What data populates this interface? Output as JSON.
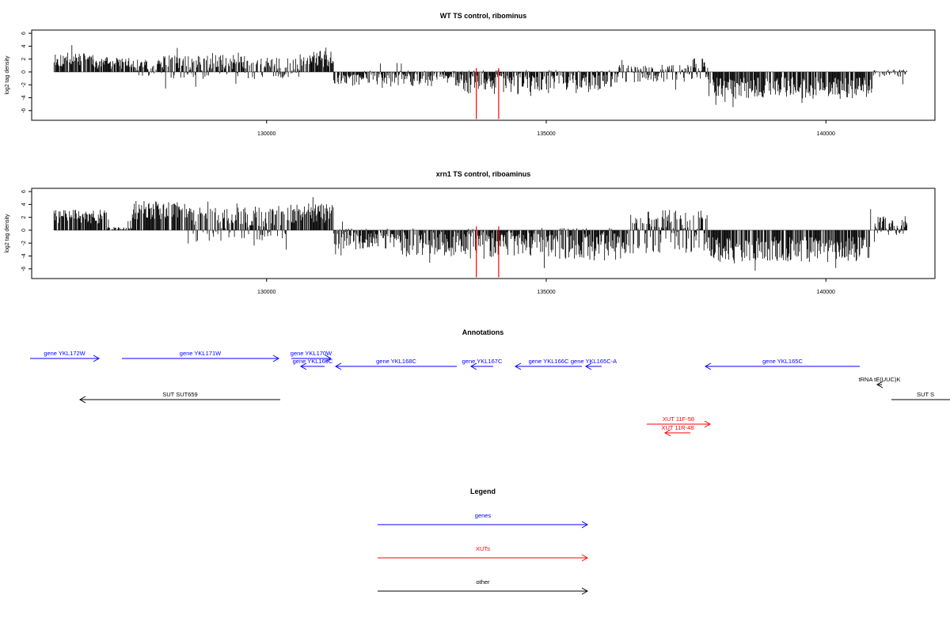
{
  "colors": {
    "gene": "#0000ff",
    "xut": "#ff0000",
    "other": "#000000",
    "marker": "#ff0000"
  },
  "chart_data": [
    {
      "type": "bar",
      "title": "WT TS control, ribominus",
      "ylabel": "log2 tag density",
      "ylim": [
        -7.5,
        6.5
      ],
      "xlim": [
        125800,
        141950
      ],
      "yticks": [
        -6,
        -4,
        -2,
        0,
        2,
        4,
        6
      ],
      "xticks": [
        130000,
        135000,
        140000
      ],
      "grid": false,
      "data_start": 126200,
      "data_end": 141450,
      "markers": [
        133750,
        134150
      ],
      "marker_depth": -7.3,
      "segments": [
        {
          "x0": 126200,
          "x1": 126900,
          "y0": 0.8,
          "y1": 3.0
        },
        {
          "x0": 126900,
          "x1": 127550,
          "y0": 0.4,
          "y1": 2.2
        },
        {
          "x0": 127550,
          "x1": 128150,
          "y0": -0.6,
          "y1": 2.0
        },
        {
          "x0": 128150,
          "x1": 129000,
          "y0": -1.4,
          "y1": 2.6
        },
        {
          "x0": 129000,
          "x1": 129650,
          "y0": -0.9,
          "y1": 3.1
        },
        {
          "x0": 129650,
          "x1": 130600,
          "y0": -1.1,
          "y1": 2.2
        },
        {
          "x0": 130600,
          "x1": 131200,
          "y0": 0.8,
          "y1": 3.4
        },
        {
          "x0": 131200,
          "x1": 132200,
          "y0": -2.0,
          "y1": 0.2
        },
        {
          "x0": 132200,
          "x1": 133500,
          "y0": -2.2,
          "y1": 0.2
        },
        {
          "x0": 133500,
          "x1": 134700,
          "y0": -3.5,
          "y1": 0.3
        },
        {
          "x0": 134700,
          "x1": 136300,
          "y0": -3.2,
          "y1": 0.3
        },
        {
          "x0": 136300,
          "x1": 137600,
          "y0": -1.6,
          "y1": 1.1
        },
        {
          "x0": 137600,
          "x1": 137900,
          "y0": -1.2,
          "y1": 2.2
        },
        {
          "x0": 137900,
          "x1": 140850,
          "y0": -4.2,
          "y1": -0.8
        },
        {
          "x0": 140850,
          "x1": 141450,
          "y0": -0.8,
          "y1": 0.4
        }
      ]
    },
    {
      "type": "bar",
      "title": "xrn1 TS control, riboaminus",
      "ylabel": "log2 tag density",
      "ylim": [
        -7.5,
        6.5
      ],
      "xlim": [
        125800,
        141950
      ],
      "yticks": [
        -6,
        -4,
        -2,
        0,
        2,
        4,
        6
      ],
      "xticks": [
        130000,
        135000,
        140000
      ],
      "grid": false,
      "data_start": 126200,
      "data_end": 141450,
      "markers": [
        133750,
        134150
      ],
      "marker_depth": -7.3,
      "segments": [
        {
          "x0": 126200,
          "x1": 127150,
          "y0": 1.0,
          "y1": 3.2
        },
        {
          "x0": 127150,
          "x1": 127600,
          "y0": 0.0,
          "y1": 0.5
        },
        {
          "x0": 127600,
          "x1": 128600,
          "y0": 1.6,
          "y1": 4.6
        },
        {
          "x0": 128600,
          "x1": 130400,
          "y0": -1.8,
          "y1": 3.8
        },
        {
          "x0": 130400,
          "x1": 131200,
          "y0": 1.0,
          "y1": 4.2
        },
        {
          "x0": 131200,
          "x1": 132400,
          "y0": -3.0,
          "y1": 0.3
        },
        {
          "x0": 132400,
          "x1": 133600,
          "y0": -4.2,
          "y1": 0.3
        },
        {
          "x0": 133600,
          "x1": 134800,
          "y0": -4.6,
          "y1": 0.4
        },
        {
          "x0": 134800,
          "x1": 136500,
          "y0": -4.8,
          "y1": 0.4
        },
        {
          "x0": 136500,
          "x1": 137900,
          "y0": -3.6,
          "y1": 3.2
        },
        {
          "x0": 137900,
          "x1": 140800,
          "y0": -5.0,
          "y1": -1.0
        },
        {
          "x0": 140800,
          "x1": 141450,
          "y0": -0.8,
          "y1": 2.2
        }
      ]
    }
  ],
  "annotations": {
    "title": "Annotations",
    "features": [
      {
        "label": "gene YKL172W",
        "kind": "gene",
        "dir": 1,
        "x0": 38,
        "x1": 125,
        "row": 0
      },
      {
        "label": "gene YKL171W",
        "kind": "gene",
        "dir": 1,
        "x0": 154,
        "x1": 352,
        "row": 0
      },
      {
        "label": "gene YKL170W",
        "kind": "gene",
        "dir": 1,
        "x0": 368,
        "x1": 418,
        "row": 0
      },
      {
        "label": "gene YKL169C",
        "kind": "gene",
        "dir": -1,
        "x0": 380,
        "x1": 410,
        "row": 1
      },
      {
        "label": "gene YKL168C",
        "kind": "gene",
        "dir": -1,
        "x0": 424,
        "x1": 577,
        "row": 1
      },
      {
        "label": "gene YKL167C",
        "kind": "gene",
        "dir": -1,
        "x0": 595,
        "x1": 623,
        "row": 1
      },
      {
        "label": "gene YKL166C",
        "kind": "gene",
        "dir": -1,
        "x0": 651,
        "x1": 735,
        "row": 1
      },
      {
        "label": "gene YKL165C-A",
        "kind": "gene",
        "dir": -1,
        "x0": 740,
        "x1": 760,
        "row": 1
      },
      {
        "label": "gene YKL165C",
        "kind": "gene",
        "dir": -1,
        "x0": 891,
        "x1": 1086,
        "row": 1
      },
      {
        "label": "tRNA tE(UUC)K",
        "kind": "other",
        "dir": -1,
        "x0": 1108,
        "x1": 1114,
        "row": 2
      },
      {
        "label": "SUT SUT659",
        "kind": "other",
        "dir": -1,
        "x0": 101,
        "x1": 354,
        "row": 3
      },
      {
        "label": "SUT S",
        "kind": "other",
        "dir": 0,
        "x0": 1126,
        "x1": 1200,
        "row": 3
      },
      {
        "label": "XUT 11F-58",
        "kind": "xut",
        "dir": 1,
        "x0": 817,
        "x1": 897,
        "row": 4
      },
      {
        "label": "XUT 11R-48",
        "kind": "xut",
        "dir": -1,
        "x0": 840,
        "x1": 872,
        "row": 5
      }
    ]
  },
  "legend": {
    "title": "Legend",
    "items": [
      {
        "label": "genes",
        "kind": "gene"
      },
      {
        "label": "XUTs",
        "kind": "xut"
      },
      {
        "label": "other",
        "kind": "other"
      }
    ]
  }
}
